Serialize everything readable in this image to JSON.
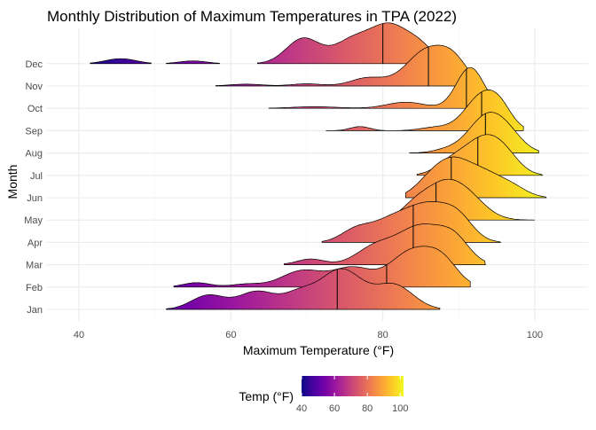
{
  "chart_data": {
    "type": "ridgeline",
    "title": "Monthly Distribution of Maximum Temperatures in TPA (2022)",
    "xlabel": "Maximum Temperature (°F)",
    "ylabel": "Month",
    "xlim": [
      35,
      107
    ],
    "xticks": [
      40,
      60,
      80,
      100
    ],
    "grid": true,
    "legend": {
      "title": "Temp (°F)",
      "position": "bottom",
      "ticks": [
        40,
        60,
        80,
        100
      ],
      "range": [
        40,
        102
      ],
      "colormap": "plasma"
    },
    "categories": [
      "Jan",
      "Feb",
      "Mar",
      "Apr",
      "May",
      "Jun",
      "Jul",
      "Aug",
      "Sep",
      "Oct",
      "Nov",
      "Dec"
    ],
    "series": [
      {
        "month": "Jan",
        "median": 74,
        "range": [
          51.5,
          87.5
        ],
        "peaks": [
          [
            57,
            0.35,
            2.2
          ],
          [
            63.5,
            0.45,
            2.5
          ],
          [
            69,
            0.35,
            2.0
          ],
          [
            74.5,
            1.0,
            2.8
          ],
          [
            81.5,
            0.6,
            2.5
          ]
        ]
      },
      {
        "month": "Feb",
        "median": 80.5,
        "range": [
          52.5,
          91.5
        ],
        "peaks": [
          [
            55.5,
            0.12,
            1.8
          ],
          [
            62,
            0.08,
            2.0
          ],
          [
            69.5,
            0.45,
            2.8
          ],
          [
            76,
            0.5,
            2.5
          ],
          [
            84,
            1.0,
            3.0
          ],
          [
            88,
            0.5,
            2.0
          ]
        ]
      },
      {
        "month": "Mar",
        "median": 84,
        "range": [
          67,
          93.5
        ],
        "peaks": [
          [
            70.5,
            0.15,
            1.8
          ],
          [
            79,
            0.45,
            2.5
          ],
          [
            85,
            1.0,
            3.0
          ],
          [
            89.5,
            0.55,
            2.0
          ]
        ]
      },
      {
        "month": "Apr",
        "median": 84,
        "range": [
          72,
          95.5
        ],
        "peaks": [
          [
            76.5,
            0.35,
            2.0
          ],
          [
            81,
            0.55,
            2.5
          ],
          [
            86,
            1.0,
            2.8
          ],
          [
            90,
            0.55,
            2.0
          ]
        ]
      },
      {
        "month": "May",
        "median": 87,
        "range": [
          81.5,
          100
        ],
        "peaks": [
          [
            84,
            0.35,
            1.8
          ],
          [
            87.5,
            1.0,
            2.5
          ],
          [
            91,
            0.75,
            2.5
          ]
        ]
      },
      {
        "month": "Jun",
        "median": 89,
        "range": [
          83,
          101.5
        ],
        "peaks": [
          [
            86,
            0.45,
            2.0
          ],
          [
            89,
            1.0,
            2.2
          ],
          [
            93,
            0.8,
            2.5
          ],
          [
            97,
            0.3,
            2.0
          ]
        ]
      },
      {
        "month": "Jul",
        "median": 92.5,
        "range": [
          84.5,
          101
        ],
        "peaks": [
          [
            89,
            0.4,
            2.0
          ],
          [
            93,
            1.0,
            2.3
          ],
          [
            96,
            0.55,
            2.0
          ]
        ]
      },
      {
        "month": "Aug",
        "median": 93.5,
        "range": [
          83.5,
          100.5
        ],
        "peaks": [
          [
            88.5,
            0.1,
            1.8
          ],
          [
            93.5,
            1.0,
            2.3
          ],
          [
            96.5,
            0.45,
            2.0
          ]
        ]
      },
      {
        "month": "Sep",
        "median": 93,
        "range": [
          72.5,
          98.5
        ],
        "peaks": [
          [
            77,
            0.12,
            1.3
          ],
          [
            87,
            0.1,
            2.0
          ],
          [
            93,
            1.0,
            2.2
          ],
          [
            95.5,
            0.45,
            1.6
          ]
        ]
      },
      {
        "month": "Oct",
        "median": 91,
        "range": [
          65,
          95
        ],
        "peaks": [
          [
            71,
            0.04,
            3.0
          ],
          [
            83,
            0.15,
            2.5
          ],
          [
            91.5,
            1.0,
            1.8
          ]
        ]
      },
      {
        "month": "Nov",
        "median": 86,
        "range": [
          58,
          92.5
        ],
        "peaks": [
          [
            62,
            0.05,
            2.2
          ],
          [
            70,
            0.06,
            2.0
          ],
          [
            78,
            0.22,
            2.2
          ],
          [
            86,
            1.0,
            2.8
          ],
          [
            89.5,
            0.45,
            1.8
          ]
        ]
      },
      {
        "month": "Dec",
        "median": 80,
        "range": [
          41.5,
          88
        ],
        "peaks": [
          [
            45.5,
            0.11,
            2.0
          ],
          [
            55,
            0.06,
            1.8
          ],
          [
            69.5,
            0.55,
            2.2
          ],
          [
            76,
            0.5,
            2.5
          ],
          [
            81,
            0.8,
            2.5
          ],
          [
            85,
            0.3,
            1.8
          ]
        ],
        "segments": [
          [
            41.5,
            49.5
          ],
          [
            51.5,
            58.5
          ],
          [
            63.5,
            88
          ]
        ]
      }
    ]
  }
}
